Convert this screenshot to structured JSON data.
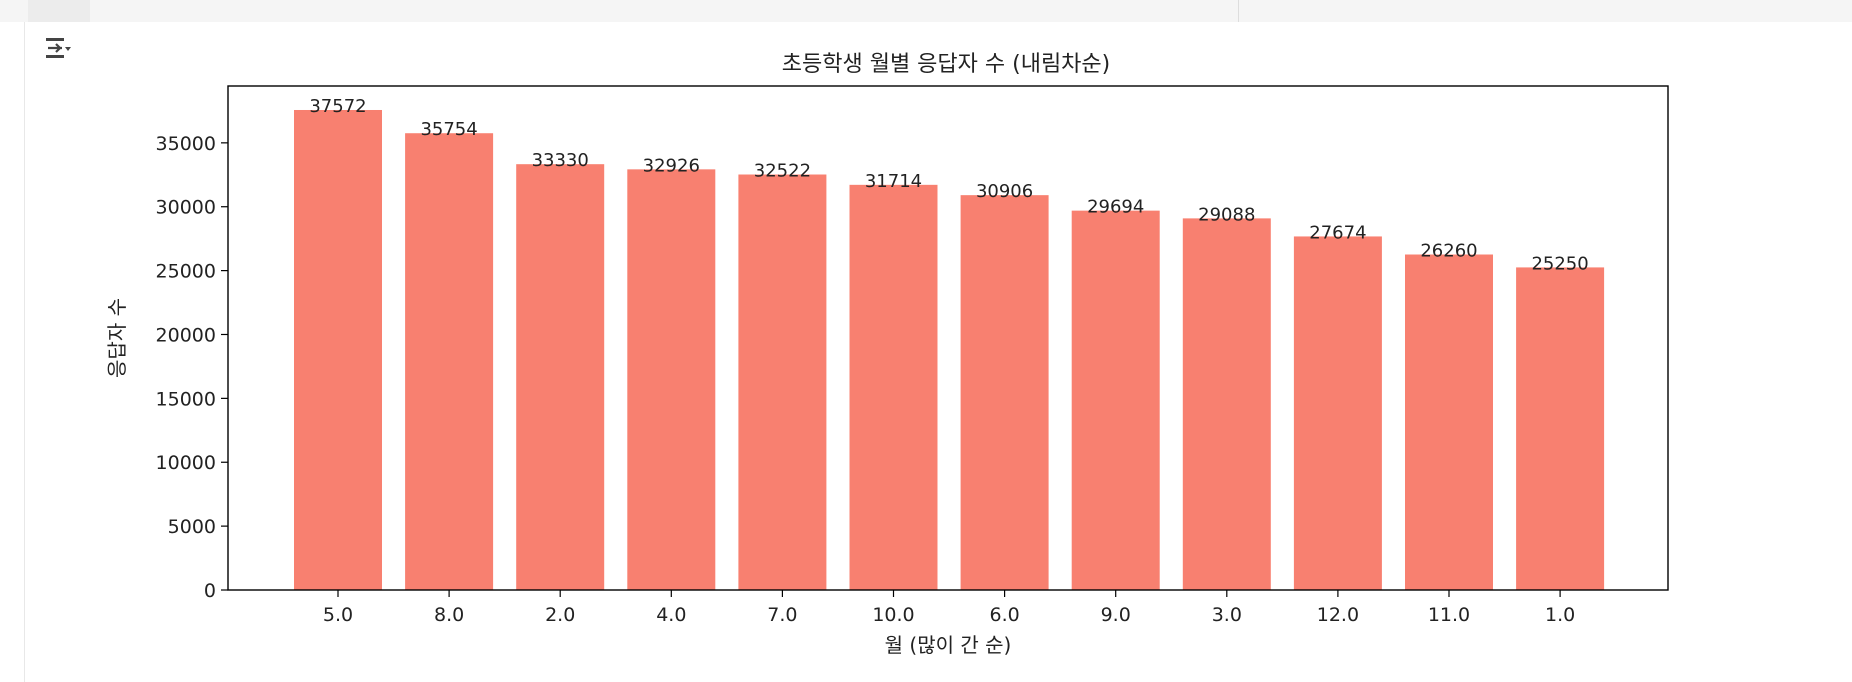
{
  "colors": {
    "bar": "#f88070",
    "axis": "#000000",
    "text": "#222222"
  },
  "output_toggle_icon": "output-collapse-icon",
  "chart_data": {
    "type": "bar",
    "title": "초등학생 월별 응답자 수 (내림차순)",
    "xlabel": "월 (많이 간 순)",
    "ylabel": "응답자 수",
    "categories": [
      "5.0",
      "8.0",
      "2.0",
      "4.0",
      "7.0",
      "10.0",
      "6.0",
      "9.0",
      "3.0",
      "12.0",
      "11.0",
      "1.0"
    ],
    "values": [
      37572,
      35754,
      33330,
      32926,
      32522,
      31714,
      30906,
      29694,
      29088,
      27674,
      26260,
      25250
    ],
    "yticks": [
      0,
      5000,
      10000,
      15000,
      20000,
      25000,
      30000,
      35000
    ],
    "ylim": [
      0,
      39450
    ],
    "grid": false,
    "legend": false
  }
}
